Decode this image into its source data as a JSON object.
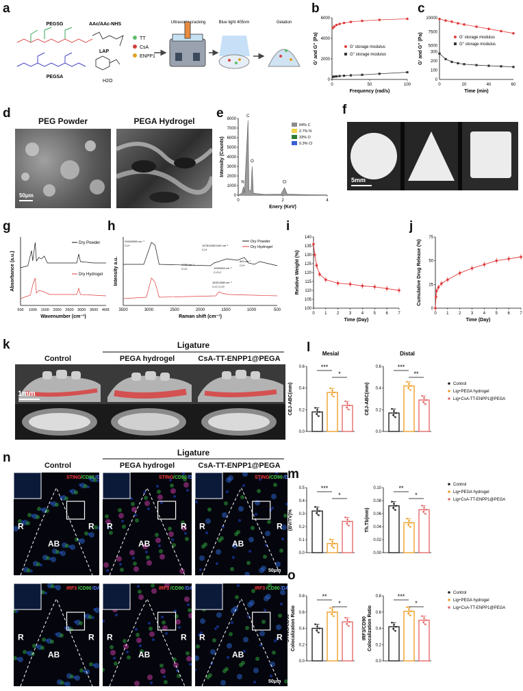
{
  "panel_letters": [
    "a",
    "b",
    "c",
    "d",
    "e",
    "f",
    "g",
    "h",
    "i",
    "j",
    "k",
    "l",
    "m",
    "n",
    "o"
  ],
  "panel_a": {
    "chem": [
      "PEGSG",
      "PEGSA",
      "AAc/AAc-NHS",
      "LAP",
      "H2O"
    ],
    "legend": [
      "TT",
      "CsA",
      "ENPP1"
    ],
    "legend_colors": [
      "#5bbf6a",
      "#d64040",
      "#e0a020"
    ],
    "steps": [
      "Ultrasonic cracking",
      "Blue light\n405nm",
      "Gelation"
    ]
  },
  "chart_data": [
    {
      "id": "b",
      "type": "scatter",
      "xlabel": "Frequency (rad/s)",
      "ylabel": "G' and G'' (Pa)",
      "xlim": [
        0,
        100
      ],
      "ylim": [
        0,
        6000
      ],
      "xticks": [
        "0",
        "50",
        "100"
      ],
      "yticks": [
        "0",
        "2000",
        "4000",
        "6000"
      ],
      "series": [
        {
          "name": "G' storage modulus",
          "color": "#e03a3a",
          "x": [
            1,
            3,
            6,
            10,
            16,
            25,
            40,
            63,
            100
          ],
          "values": [
            5000,
            5150,
            5300,
            5400,
            5500,
            5600,
            5700,
            5800,
            5900
          ]
        },
        {
          "name": "G'' storage modulus",
          "color": "#333333",
          "x": [
            1,
            3,
            6,
            10,
            16,
            25,
            40,
            63,
            100
          ],
          "values": [
            250,
            280,
            300,
            330,
            360,
            400,
            450,
            550,
            700
          ]
        }
      ]
    },
    {
      "id": "c",
      "type": "scatter",
      "xlabel": "Time (min)",
      "ylabel": "G' and G'' (Pa)",
      "xlim": [
        0,
        60
      ],
      "yticks": [
        "0",
        "100",
        "200",
        "300",
        "5000",
        "7500",
        "10000"
      ],
      "xticks": [
        "0",
        "20",
        "40",
        "60"
      ],
      "series": [
        {
          "name": "G' storage modulus",
          "color": "#e03a3a",
          "x": [
            0,
            5,
            10,
            15,
            20,
            30,
            40,
            50,
            60
          ],
          "values": [
            9800,
            9500,
            9300,
            9000,
            8800,
            8400,
            8000,
            7600,
            7200
          ]
        },
        {
          "name": "G'' storage modulus",
          "color": "#333333",
          "x": [
            0,
            5,
            10,
            15,
            20,
            30,
            40,
            50,
            60
          ],
          "values": [
            280,
            220,
            190,
            175,
            165,
            155,
            148,
            142,
            135
          ]
        }
      ]
    },
    {
      "id": "e",
      "type": "line",
      "xlabel": "Enery (KeV)",
      "ylabel": "Intensity (Counts)",
      "xticks": [
        "0",
        "2",
        "4"
      ],
      "yticks": [
        "0",
        "1000",
        "2000",
        "3000",
        "4000",
        "5000",
        "6000",
        "7000",
        "8000"
      ],
      "legend": [
        "64% C",
        "2.7% N",
        "33% O",
        "0.3% Cl"
      ],
      "legend_colors": [
        "#8c8c8c",
        "#f2d24b",
        "#2e7d32",
        "#3c5fd6"
      ],
      "peaks": [
        "N",
        "C",
        "O",
        "Cl"
      ]
    },
    {
      "id": "g",
      "type": "line",
      "xlabel": "Wavenumber (cm⁻¹)",
      "ylabel": "Absorbance (a.u.)",
      "xticks": [
        "500",
        "1000",
        "1500",
        "2000",
        "2500",
        "3000",
        "3500",
        "4000"
      ],
      "series": [
        {
          "name": "Dry Powder",
          "color": "#111111"
        },
        {
          "name": "Dry Hydrogel",
          "color": "#e03a3a"
        }
      ]
    },
    {
      "id": "h",
      "type": "line",
      "xlabel": "Raman shift (cm⁻¹)",
      "ylabel": "Intensity a.u.",
      "xticks": [
        "3500",
        "3000",
        "2500",
        "2000",
        "1500",
        "1000",
        "500"
      ],
      "series": [
        {
          "name": "Dry Powder",
          "color": "#111111"
        },
        {
          "name": "Dry Hydrogel",
          "color": "#e03a3a"
        }
      ],
      "annotations": [
        "2943/2890 cm⁻¹\nC-H",
        "1478/1280/1140 cm⁻¹\nC-H",
        "1730 cm⁻¹\nC=O",
        "1632/1580 cm⁻¹\nC=C C=O",
        "1053/945 cm⁻¹\nC-O-C",
        "843 cm⁻¹\nC-H"
      ]
    },
    {
      "id": "i",
      "type": "line",
      "xlabel": "Time (Day)",
      "ylabel": "Relative Weight (%)",
      "ylim": [
        100,
        140
      ],
      "yticks": [
        "100",
        "105",
        "110",
        "115",
        "120",
        "125",
        "130",
        "135",
        "140"
      ],
      "xticks": [
        "0",
        "1",
        "2",
        "3",
        "4",
        "5",
        "6",
        "7"
      ],
      "x": [
        0,
        0.1,
        0.25,
        0.5,
        1,
        2,
        3,
        4,
        5,
        6,
        7
      ],
      "values": [
        136,
        130,
        124,
        119,
        116,
        114,
        113.5,
        112.5,
        112,
        111,
        110
      ]
    },
    {
      "id": "j",
      "type": "line",
      "xlabel": "Time (Day)",
      "ylabel": "Cumulative Drug Release (%)",
      "ylim": [
        0,
        75
      ],
      "yticks": [
        "0",
        "25",
        "50",
        "75"
      ],
      "xticks": [
        "0",
        "1",
        "2",
        "3",
        "4",
        "5",
        "6",
        "7"
      ],
      "x": [
        0,
        0.05,
        0.1,
        0.25,
        0.5,
        1,
        2,
        3,
        4,
        5,
        6,
        7
      ],
      "values": [
        0,
        12,
        18,
        22,
        26,
        30,
        37,
        42,
        46,
        50,
        52,
        54
      ]
    },
    {
      "id": "l",
      "type": "bar",
      "subplots": [
        "Mesial",
        "Distal"
      ],
      "ylabel": "CEJ-ABC(mm)",
      "ylim": [
        0,
        0.6
      ],
      "yticks": [
        "0.0",
        "0.2",
        "0.4",
        "0.6"
      ],
      "categories": [
        "Control",
        "Lig+PEGA hydrogel",
        "Lig+CsA-TT-ENPP1@PEGA"
      ],
      "colors": [
        "#222222",
        "#f0a028",
        "#e56a6a"
      ],
      "series": [
        {
          "name": "Mesial",
          "values": [
            0.18,
            0.36,
            0.24
          ]
        },
        {
          "name": "Distal",
          "values": [
            0.17,
            0.42,
            0.29
          ]
        }
      ],
      "significance": [
        [
          "***",
          "*"
        ],
        [
          "***",
          "**"
        ]
      ]
    },
    {
      "id": "m",
      "type": "bar",
      "categories": [
        "Control",
        "Lig+PEGA hydrogel",
        "Lig+CsA-TT-ENPP1@PEGA"
      ],
      "colors": [
        "#222222",
        "#f0a028",
        "#e56a6a"
      ],
      "series": [
        {
          "name": "(BV/TV)%",
          "values": [
            0.32,
            0.07,
            0.24
          ],
          "ylim": [
            0,
            0.5
          ],
          "yticks": [
            "0.0",
            "0.1",
            "0.2",
            "0.3",
            "0.4",
            "0.5"
          ]
        },
        {
          "name": "Th.Tb(mm)",
          "values": [
            0.072,
            0.046,
            0.066
          ],
          "ylim": [
            0,
            0.1
          ],
          "yticks": [
            "0.00",
            "0.02",
            "0.04",
            "0.06",
            "0.08",
            "0.10"
          ]
        }
      ],
      "significance": [
        [
          "***",
          "*"
        ],
        [
          "**",
          "*"
        ]
      ]
    },
    {
      "id": "o",
      "type": "bar",
      "categories": [
        "Control",
        "Lig+PEGA hydrogel",
        "Lig+CsA-TT-ENPP1@PEGA"
      ],
      "colors": [
        "#222222",
        "#f0a028",
        "#e56a6a"
      ],
      "series": [
        {
          "name": "STING/CD90\nColocalization Ratio",
          "values": [
            0.4,
            0.6,
            0.48
          ],
          "ylim": [
            0,
            0.8
          ],
          "yticks": [
            "0.0",
            "0.2",
            "0.4",
            "0.6",
            "0.8"
          ]
        },
        {
          "name": "IRF3/CD90\nColocalization Ratio",
          "values": [
            0.42,
            0.61,
            0.5
          ],
          "ylim": [
            0,
            0.8
          ],
          "yticks": [
            "0.0",
            "0.2",
            "0.4",
            "0.6",
            "0.8"
          ]
        }
      ],
      "significance": [
        [
          "**",
          "*"
        ],
        [
          "***",
          "*"
        ]
      ]
    }
  ],
  "panel_d": {
    "titles": [
      "PEG Powder",
      "PEGA Hydrogel"
    ],
    "scale": "50μm"
  },
  "panel_f": {
    "scale": "5mm"
  },
  "panel_k": {
    "group": "Ligature",
    "columns": [
      "Control",
      "PEGA hydrogel",
      "CsA-TT-ENPP1@PEGA"
    ],
    "scale": "1mm"
  },
  "panel_n": {
    "group": "Ligature",
    "columns": [
      "Control",
      "PEGA hydrogel",
      "CsA-TT-ENPP1@PEGA"
    ],
    "stain_top": [
      "STING",
      "/CD90",
      "/DAPI"
    ],
    "stain_bottom": [
      "IRF3",
      "/CD90",
      "/DAPI"
    ],
    "labels": [
      "R",
      "AB"
    ],
    "scale": "50μm"
  },
  "legend_groups": [
    "Control",
    "Lig+PEGA hydrogel",
    "Lig+CsA-TT-ENPP1@PEGA"
  ]
}
